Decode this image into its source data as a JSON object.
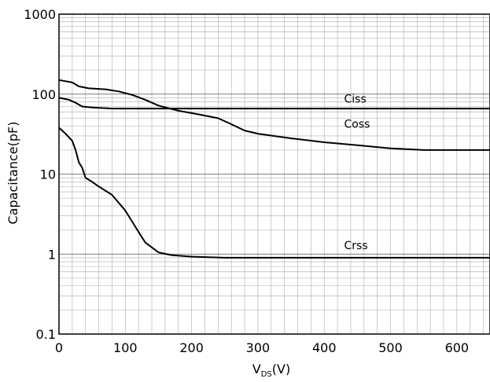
{
  "chart_data": {
    "type": "line",
    "xscale": "linear",
    "yscale": "log",
    "xlim": [
      0,
      650
    ],
    "ylim": [
      0.1,
      1000
    ],
    "xticks": [
      0,
      100,
      200,
      300,
      400,
      500,
      600
    ],
    "xtick_labels": [
      "0",
      "100",
      "200",
      "300",
      "400",
      "500",
      "600"
    ],
    "yticks": [
      0.1,
      1,
      10,
      100,
      1000
    ],
    "ytick_labels": [
      "0.1",
      "1",
      "10",
      "100",
      "1000"
    ],
    "ylabel": "Capacitance(pF)",
    "xlabel_main": "V",
    "xlabel_sub": "DS",
    "xlabel_unit": "(V)",
    "grid": true,
    "line_color": "#000000",
    "grid_color": "#aaaaaa",
    "series": [
      {
        "name": "Ciss",
        "x": [
          0,
          15,
          25,
          35,
          50,
          80,
          100,
          120,
          140,
          160,
          170,
          200,
          300,
          400,
          500,
          650
        ],
        "y": [
          90,
          85,
          78,
          70,
          68,
          66,
          66,
          66,
          66,
          66,
          66,
          66,
          66,
          66,
          66,
          66
        ]
      },
      {
        "name": "Coss",
        "x": [
          0,
          20,
          30,
          45,
          70,
          90,
          110,
          130,
          150,
          180,
          210,
          240,
          260,
          280,
          300,
          350,
          400,
          450,
          500,
          550,
          600,
          650
        ],
        "y": [
          150,
          140,
          125,
          118,
          115,
          108,
          98,
          85,
          72,
          62,
          56,
          50,
          42,
          35,
          32,
          28,
          25,
          23,
          21,
          20,
          20,
          20
        ]
      },
      {
        "name": "Crss",
        "x": [
          0,
          10,
          20,
          25,
          30,
          35,
          40,
          50,
          60,
          80,
          100,
          115,
          130,
          150,
          170,
          200,
          250,
          300,
          400,
          500,
          600,
          650
        ],
        "y": [
          38,
          32,
          26,
          20,
          14,
          12,
          9,
          8,
          7,
          5.5,
          3.5,
          2.2,
          1.4,
          1.05,
          0.97,
          0.93,
          0.9,
          0.9,
          0.9,
          0.9,
          0.9,
          0.9
        ]
      }
    ],
    "annotations": [
      {
        "text": "Ciss",
        "x": 430,
        "y": 78
      },
      {
        "text": "Coss",
        "x": 430,
        "y": 38
      },
      {
        "text": "Crss",
        "x": 430,
        "y": 1.15
      }
    ]
  }
}
